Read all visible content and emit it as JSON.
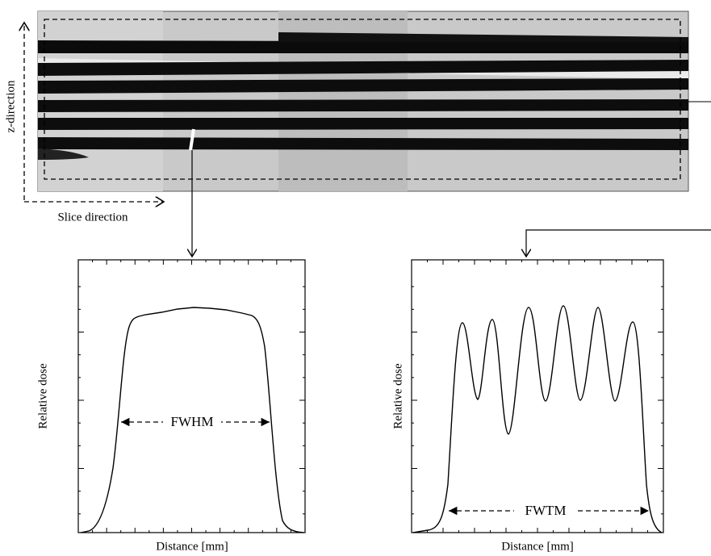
{
  "film": {
    "z_label": "z-direction",
    "slice_label": "Slice direction"
  },
  "plots": [
    {
      "ylabel": "Relative dose",
      "xlabel": "Distance [mm]",
      "annotation": "FWHM"
    },
    {
      "ylabel": "Relative dose",
      "xlabel": "Distance [mm]",
      "annotation": "FWTM"
    }
  ]
}
